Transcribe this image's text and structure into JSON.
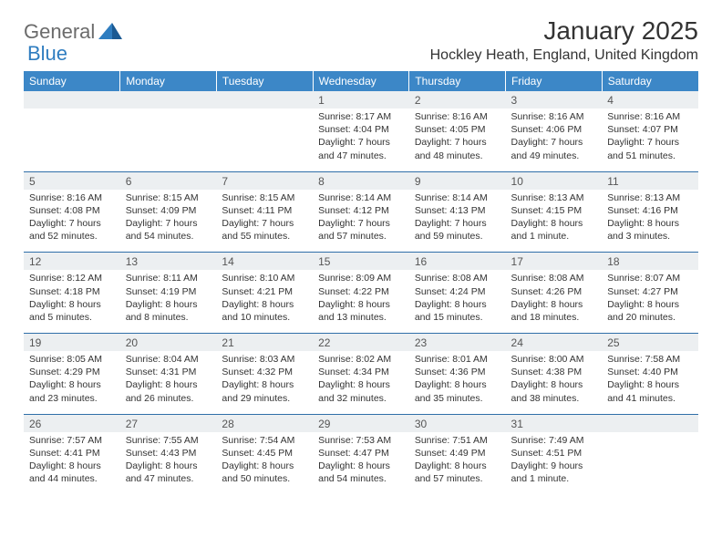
{
  "brand": {
    "part1": "General",
    "part2": "Blue"
  },
  "title": {
    "month_year": "January 2025",
    "location": "Hockley Heath, England, United Kingdom"
  },
  "colors": {
    "header_bg": "#3c87c7",
    "header_text": "#ffffff",
    "num_row_bg": "#eceff1",
    "row_border": "#2f6fa8",
    "body_text": "#333333",
    "logo_gray": "#6b6b6b",
    "logo_blue": "#2f7dc0",
    "page_bg": "#ffffff"
  },
  "weekdays": [
    "Sunday",
    "Monday",
    "Tuesday",
    "Wednesday",
    "Thursday",
    "Friday",
    "Saturday"
  ],
  "weeks": [
    {
      "nums": [
        "",
        "",
        "",
        "1",
        "2",
        "3",
        "4"
      ],
      "cells": [
        null,
        null,
        null,
        {
          "sunrise": "Sunrise: 8:17 AM",
          "sunset": "Sunset: 4:04 PM",
          "d1": "Daylight: 7 hours",
          "d2": "and 47 minutes."
        },
        {
          "sunrise": "Sunrise: 8:16 AM",
          "sunset": "Sunset: 4:05 PM",
          "d1": "Daylight: 7 hours",
          "d2": "and 48 minutes."
        },
        {
          "sunrise": "Sunrise: 8:16 AM",
          "sunset": "Sunset: 4:06 PM",
          "d1": "Daylight: 7 hours",
          "d2": "and 49 minutes."
        },
        {
          "sunrise": "Sunrise: 8:16 AM",
          "sunset": "Sunset: 4:07 PM",
          "d1": "Daylight: 7 hours",
          "d2": "and 51 minutes."
        }
      ]
    },
    {
      "nums": [
        "5",
        "6",
        "7",
        "8",
        "9",
        "10",
        "11"
      ],
      "cells": [
        {
          "sunrise": "Sunrise: 8:16 AM",
          "sunset": "Sunset: 4:08 PM",
          "d1": "Daylight: 7 hours",
          "d2": "and 52 minutes."
        },
        {
          "sunrise": "Sunrise: 8:15 AM",
          "sunset": "Sunset: 4:09 PM",
          "d1": "Daylight: 7 hours",
          "d2": "and 54 minutes."
        },
        {
          "sunrise": "Sunrise: 8:15 AM",
          "sunset": "Sunset: 4:11 PM",
          "d1": "Daylight: 7 hours",
          "d2": "and 55 minutes."
        },
        {
          "sunrise": "Sunrise: 8:14 AM",
          "sunset": "Sunset: 4:12 PM",
          "d1": "Daylight: 7 hours",
          "d2": "and 57 minutes."
        },
        {
          "sunrise": "Sunrise: 8:14 AM",
          "sunset": "Sunset: 4:13 PM",
          "d1": "Daylight: 7 hours",
          "d2": "and 59 minutes."
        },
        {
          "sunrise": "Sunrise: 8:13 AM",
          "sunset": "Sunset: 4:15 PM",
          "d1": "Daylight: 8 hours",
          "d2": "and 1 minute."
        },
        {
          "sunrise": "Sunrise: 8:13 AM",
          "sunset": "Sunset: 4:16 PM",
          "d1": "Daylight: 8 hours",
          "d2": "and 3 minutes."
        }
      ]
    },
    {
      "nums": [
        "12",
        "13",
        "14",
        "15",
        "16",
        "17",
        "18"
      ],
      "cells": [
        {
          "sunrise": "Sunrise: 8:12 AM",
          "sunset": "Sunset: 4:18 PM",
          "d1": "Daylight: 8 hours",
          "d2": "and 5 minutes."
        },
        {
          "sunrise": "Sunrise: 8:11 AM",
          "sunset": "Sunset: 4:19 PM",
          "d1": "Daylight: 8 hours",
          "d2": "and 8 minutes."
        },
        {
          "sunrise": "Sunrise: 8:10 AM",
          "sunset": "Sunset: 4:21 PM",
          "d1": "Daylight: 8 hours",
          "d2": "and 10 minutes."
        },
        {
          "sunrise": "Sunrise: 8:09 AM",
          "sunset": "Sunset: 4:22 PM",
          "d1": "Daylight: 8 hours",
          "d2": "and 13 minutes."
        },
        {
          "sunrise": "Sunrise: 8:08 AM",
          "sunset": "Sunset: 4:24 PM",
          "d1": "Daylight: 8 hours",
          "d2": "and 15 minutes."
        },
        {
          "sunrise": "Sunrise: 8:08 AM",
          "sunset": "Sunset: 4:26 PM",
          "d1": "Daylight: 8 hours",
          "d2": "and 18 minutes."
        },
        {
          "sunrise": "Sunrise: 8:07 AM",
          "sunset": "Sunset: 4:27 PM",
          "d1": "Daylight: 8 hours",
          "d2": "and 20 minutes."
        }
      ]
    },
    {
      "nums": [
        "19",
        "20",
        "21",
        "22",
        "23",
        "24",
        "25"
      ],
      "cells": [
        {
          "sunrise": "Sunrise: 8:05 AM",
          "sunset": "Sunset: 4:29 PM",
          "d1": "Daylight: 8 hours",
          "d2": "and 23 minutes."
        },
        {
          "sunrise": "Sunrise: 8:04 AM",
          "sunset": "Sunset: 4:31 PM",
          "d1": "Daylight: 8 hours",
          "d2": "and 26 minutes."
        },
        {
          "sunrise": "Sunrise: 8:03 AM",
          "sunset": "Sunset: 4:32 PM",
          "d1": "Daylight: 8 hours",
          "d2": "and 29 minutes."
        },
        {
          "sunrise": "Sunrise: 8:02 AM",
          "sunset": "Sunset: 4:34 PM",
          "d1": "Daylight: 8 hours",
          "d2": "and 32 minutes."
        },
        {
          "sunrise": "Sunrise: 8:01 AM",
          "sunset": "Sunset: 4:36 PM",
          "d1": "Daylight: 8 hours",
          "d2": "and 35 minutes."
        },
        {
          "sunrise": "Sunrise: 8:00 AM",
          "sunset": "Sunset: 4:38 PM",
          "d1": "Daylight: 8 hours",
          "d2": "and 38 minutes."
        },
        {
          "sunrise": "Sunrise: 7:58 AM",
          "sunset": "Sunset: 4:40 PM",
          "d1": "Daylight: 8 hours",
          "d2": "and 41 minutes."
        }
      ]
    },
    {
      "nums": [
        "26",
        "27",
        "28",
        "29",
        "30",
        "31",
        ""
      ],
      "cells": [
        {
          "sunrise": "Sunrise: 7:57 AM",
          "sunset": "Sunset: 4:41 PM",
          "d1": "Daylight: 8 hours",
          "d2": "and 44 minutes."
        },
        {
          "sunrise": "Sunrise: 7:55 AM",
          "sunset": "Sunset: 4:43 PM",
          "d1": "Daylight: 8 hours",
          "d2": "and 47 minutes."
        },
        {
          "sunrise": "Sunrise: 7:54 AM",
          "sunset": "Sunset: 4:45 PM",
          "d1": "Daylight: 8 hours",
          "d2": "and 50 minutes."
        },
        {
          "sunrise": "Sunrise: 7:53 AM",
          "sunset": "Sunset: 4:47 PM",
          "d1": "Daylight: 8 hours",
          "d2": "and 54 minutes."
        },
        {
          "sunrise": "Sunrise: 7:51 AM",
          "sunset": "Sunset: 4:49 PM",
          "d1": "Daylight: 8 hours",
          "d2": "and 57 minutes."
        },
        {
          "sunrise": "Sunrise: 7:49 AM",
          "sunset": "Sunset: 4:51 PM",
          "d1": "Daylight: 9 hours",
          "d2": "and 1 minute."
        },
        null
      ]
    }
  ]
}
